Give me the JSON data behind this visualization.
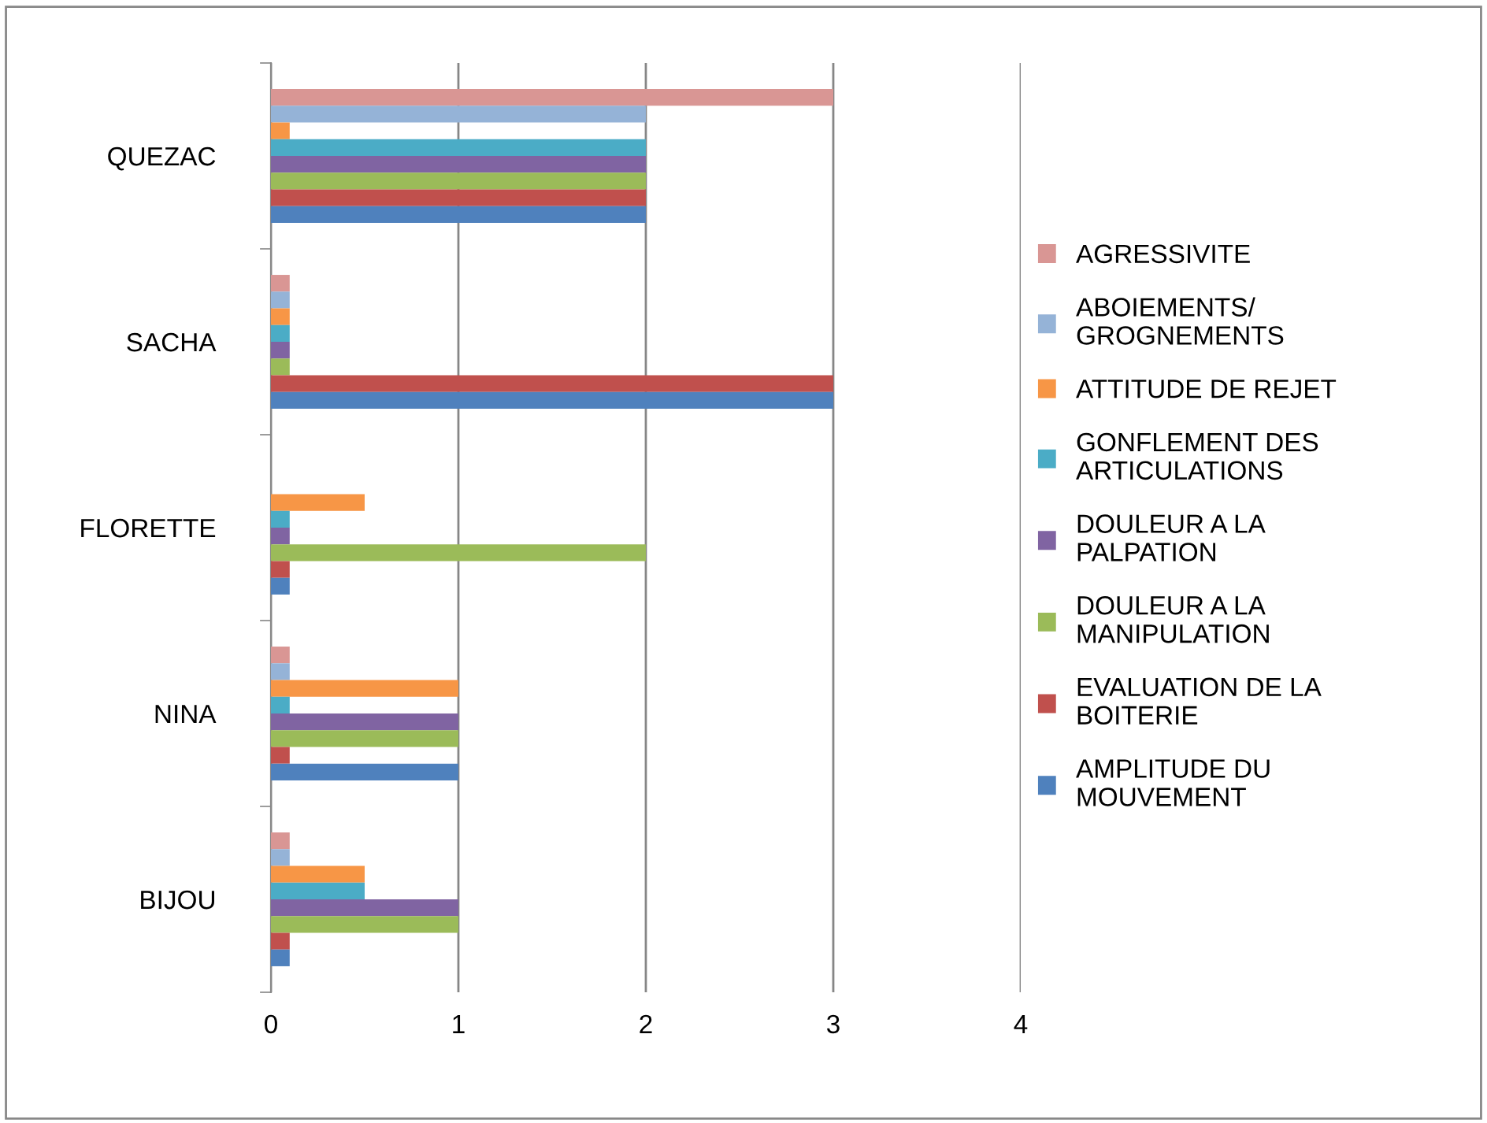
{
  "chart_data": {
    "type": "bar",
    "orientation": "horizontal",
    "categories": [
      "QUEZAC",
      "SACHA",
      "FLORETTE",
      "NINA",
      "BIJOU"
    ],
    "series": [
      {
        "name": "AGRESSIVITE",
        "color": "#d99694",
        "values": [
          3,
          0.1,
          null,
          0.1,
          0.1
        ]
      },
      {
        "name": "ABOIEMENTS/ GROGNEMENTS",
        "color": "#95b3d7",
        "values": [
          2,
          0.1,
          null,
          0.1,
          0.1
        ]
      },
      {
        "name": "ATTITUDE DE REJET",
        "color": "#f79646",
        "values": [
          0.1,
          0.1,
          0.5,
          1,
          0.5
        ]
      },
      {
        "name": "GONFLEMENT DES ARTICULATIONS",
        "color": "#4bacc6",
        "values": [
          2,
          0.1,
          0.1,
          0.1,
          0.5
        ]
      },
      {
        "name": "DOULEUR A LA PALPATION",
        "color": "#8064a2",
        "values": [
          2,
          0.1,
          0.1,
          1,
          1
        ]
      },
      {
        "name": "DOULEUR A LA MANIPULATION",
        "color": "#9bbb59",
        "values": [
          2,
          0.1,
          2,
          1,
          1
        ]
      },
      {
        "name": "EVALUATION DE LA BOITERIE",
        "color": "#c0504d",
        "values": [
          2,
          3,
          0.1,
          0.1,
          0.1
        ]
      },
      {
        "name": "AMPLITUDE DU MOUVEMENT",
        "color": "#4f81bd",
        "values": [
          2,
          3,
          0.1,
          1,
          0.1
        ]
      }
    ],
    "xlim": [
      0,
      4
    ],
    "xticks": [
      0,
      1,
      2,
      3,
      4
    ],
    "grid": "x",
    "legend": "right"
  }
}
